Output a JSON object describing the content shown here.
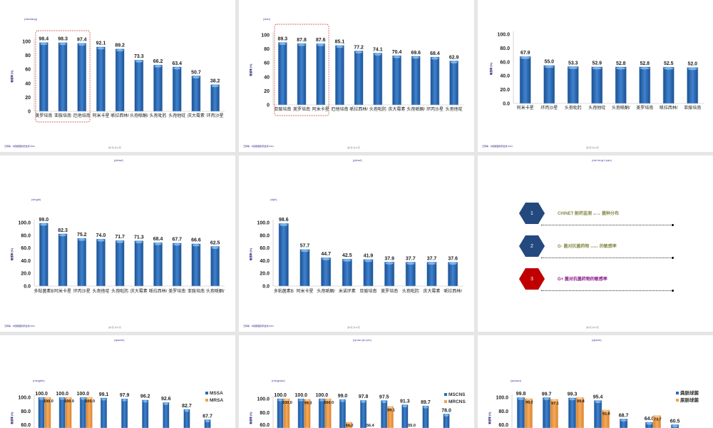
{
  "colors": {
    "bar_blue": "#2b6cb8",
    "bar_orange": "#f0a050",
    "highlight_box": "#c0392b",
    "hex_blue": "#23497f",
    "hex_red": "#c00000",
    "text_olive": "#8a8a4a",
    "text_purple": "#8b1c8b"
  },
  "slides": [
    {
      "title": "(dachang)",
      "footer": "王辉等 · 中国细菌耐药监测 2011",
      "page": "第1页,共12页"
    },
    {
      "title": "(xian)",
      "footer": "王辉等 · 中国细菌耐药监测 2011",
      "page": "第2页,共12页"
    },
    {
      "title": "",
      "footer": "王辉等 · 中国细菌耐药监测 2011",
      "page": "第3页,共12页"
    },
    {
      "title": "(pilowi)",
      "subtitle": "(xingdi)",
      "footer": "王辉等 · 中国细菌耐药监测 2011",
      "page": "第4页,共12页"
    },
    {
      "title": "(pilowi)",
      "subtitle": "(xijie)",
      "footer": "王辉等 · 中国细菌耐药监测 2011",
      "page": "第5页,共12页"
    },
    {
      "title": "(nái rồng lì yào)",
      "page": "第6页,共12页",
      "items": [
        {
          "num": "1",
          "text": "CHINET 耐药监测",
          "small": "(lán cè)",
          "text2": "菌种分布",
          "color": "hex_blue"
        },
        {
          "num": "2",
          "text": "G- 菌对抗菌药物",
          "small": "(qìwaiz)",
          "text2": "的敏感率",
          "color": "hex_blue"
        },
        {
          "num": "3",
          "text": "G+ 菌对抗菌药物的敏感率",
          "small": "",
          "text2": "",
          "color": "hex_red"
        }
      ]
    },
    {
      "title": "(qiaomi)",
      "subtitle": "(mingdie)"
    },
    {
      "title": "(qi tao qio pro)",
      "subtitle": "(mingxiao)"
    },
    {
      "title": "(qiaom)",
      "subtitle": "(yiduwu)"
    }
  ],
  "chart_data": [
    {
      "type": "bar",
      "ylabel": "敏感率 (%)",
      "ylim": [
        0,
        100
      ],
      "yticks": [
        "0",
        "20",
        "40",
        "60",
        "80",
        "100"
      ],
      "categories": [
        "美罗培南",
        "亚胺培南",
        "厄他培南",
        "阿米卡星",
        "哌拉西林/",
        "头孢哌酮/",
        "头孢吡肟",
        "头孢他啶",
        "庆大霉素",
        "环丙沙星"
      ],
      "series": [
        {
          "values": [
            98.4,
            98.3,
            97.4,
            92.1,
            89.2,
            73.3,
            66.2,
            63.4,
            50.7,
            38.2
          ]
        }
      ],
      "highlight": [
        0,
        2
      ]
    },
    {
      "type": "bar",
      "ylabel": "敏感率 (%)",
      "ylim": [
        0,
        100
      ],
      "yticks": [
        "0",
        "20",
        "40",
        "60",
        "80",
        "100"
      ],
      "categories": [
        "亚胺培南",
        "美罗培南",
        "阿米卡星",
        "厄他培南",
        "哌拉西林/",
        "头孢吡肟",
        "庆大霉素",
        "头孢哌酮/",
        "环丙沙星",
        "头孢他啶"
      ],
      "series": [
        {
          "values": [
            89.3,
            87.8,
            87.6,
            85.1,
            77.2,
            74.1,
            70.4,
            69.6,
            68.4,
            62.9
          ]
        }
      ],
      "highlight": [
        0,
        2
      ]
    },
    {
      "type": "bar",
      "ylabel": "敏感率 (%)",
      "ylim": [
        0,
        100
      ],
      "yticks": [
        "0.0",
        "20.0",
        "40.0",
        "60.0",
        "80.0",
        "100.0"
      ],
      "categories": [
        "阿米卡星",
        "环丙沙星",
        "头孢吡肟",
        "头孢他啶",
        "头孢哌酮/",
        "美罗培南",
        "哌拉西林/",
        "亚胺培南"
      ],
      "series": [
        {
          "values": [
            67.9,
            55.0,
            53.3,
            52.9,
            52.8,
            52.8,
            52.5,
            52.0
          ]
        }
      ]
    },
    {
      "type": "bar",
      "ylabel": "敏感率 (%)",
      "ylim": [
        0,
        100
      ],
      "yticks": [
        "0.0",
        "20.0",
        "40.0",
        "60.0",
        "80.0",
        "100.0"
      ],
      "categories": [
        "多粘菌素B",
        "阿米卡星",
        "环丙沙星",
        "头孢他啶",
        "头孢吡肟",
        "庆大霉素",
        "哌拉西林/",
        "美罗培南",
        "亚胺培南",
        "头孢哌酮/"
      ],
      "series": [
        {
          "values": [
            99.0,
            82.3,
            75.2,
            74.0,
            71.7,
            71.3,
            68.4,
            67.7,
            66.6,
            62.5
          ]
        }
      ]
    },
    {
      "type": "bar",
      "ylabel": "敏感率 (%)",
      "ylim": [
        0,
        100
      ],
      "yticks": [
        "0.0",
        "20.0",
        "40.0",
        "60.0",
        "80.0",
        "100.0"
      ],
      "categories": [
        "多粘菌素B",
        "阿米卡星",
        "头孢哌酮/",
        "米诺环素",
        "亚胺培南",
        "美罗培南",
        "头孢吡肟",
        "庆大霉素",
        "哌拉西林/"
      ],
      "series": [
        {
          "values": [
            98.6,
            57.7,
            44.7,
            42.5,
            41.9,
            37.9,
            37.7,
            37.7,
            37.6
          ]
        }
      ]
    },
    null,
    {
      "type": "bar",
      "ylabel": "敏感率 (%)",
      "ylim": [
        0,
        100
      ],
      "yticks": [
        "60.0",
        "80.0",
        "100.0"
      ],
      "legend": "right",
      "series": [
        {
          "name": "MSSA",
          "values": [
            100.0,
            100.0,
            100.0,
            99.1,
            97.9,
            96.2,
            92.6,
            82.7,
            67.7
          ]
        },
        {
          "name": "MRSA",
          "values": [
            100.0,
            100.0,
            100.0,
            null,
            null,
            null,
            null,
            null,
            null
          ]
        }
      ]
    },
    {
      "type": "bar",
      "ylabel": "敏感率 (%)",
      "ylim": [
        0,
        100
      ],
      "yticks": [
        "60.0",
        "80.0",
        "100.0"
      ],
      "legend": "right",
      "series": [
        {
          "name": "MSCNS",
          "values": [
            100.0,
            100.0,
            100.0,
            99.0,
            97.8,
            97.5,
            91.3,
            89.7,
            78.0
          ]
        },
        {
          "name": "MRCNS",
          "values": [
            100.0,
            99.3,
            100.0,
            66.2,
            56.4,
            89.1,
            55.0,
            null,
            null
          ]
        }
      ]
    },
    {
      "type": "bar",
      "ylabel": "敏感率 (%)",
      "ylim": [
        0,
        100
      ],
      "yticks": [
        "60.0",
        "80.0",
        "100.0"
      ],
      "legend": "right",
      "series": [
        {
          "name": "粪肠球菌",
          "values": [
            99.8,
            99.7,
            99.3,
            95.4,
            68.7,
            64.0,
            60.5
          ]
        },
        {
          "name": "屎肠球菌",
          "values": [
            98.2,
            97.1,
            99.8,
            81.8,
            null,
            73.7,
            null
          ]
        }
      ]
    }
  ]
}
